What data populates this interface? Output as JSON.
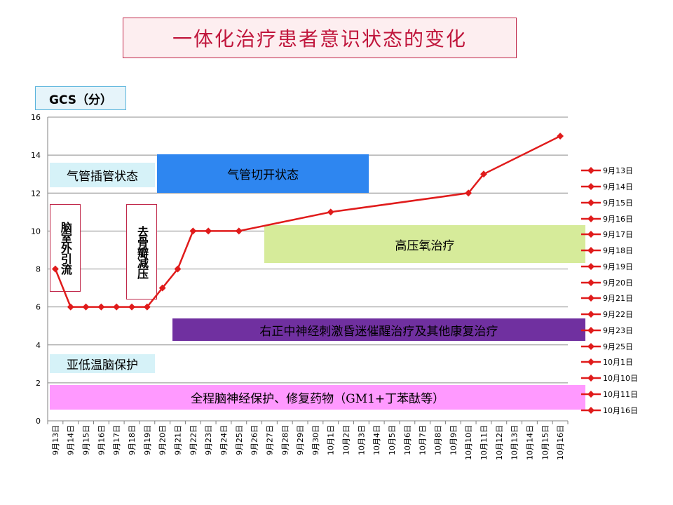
{
  "page_title": "一体化治疗患者意识状态的变化",
  "y_axis_label": "GCS（分）",
  "chart_data": {
    "type": "line",
    "categories": [
      "9月13日",
      "9月14日",
      "9月15日",
      "9月16日",
      "9月17日",
      "9月18日",
      "9月19日",
      "9月20日",
      "9月21日",
      "9月22日",
      "9月23日",
      "9月24日",
      "9月25日",
      "9月26日",
      "9月27日",
      "9月28日",
      "9月29日",
      "9月30日",
      "10月1日",
      "10月2日",
      "10月3日",
      "10月4日",
      "10月5日",
      "10月6日",
      "10月7日",
      "10月8日",
      "10月9日",
      "10月10日",
      "10月11日",
      "10月12日",
      "10月13日",
      "10月14日",
      "10月15日",
      "10月16日"
    ],
    "ylim": [
      0,
      16
    ],
    "yticks": [
      0,
      2,
      4,
      6,
      8,
      10,
      12,
      14,
      16
    ],
    "grid": true,
    "legend_position": "right",
    "series": [
      {
        "color": "#e01b1b",
        "marker_color": "#e01b1b",
        "points": [
          {
            "x": "9月13日",
            "y": 8
          },
          {
            "x": "9月14日",
            "y": 6
          },
          {
            "x": "9月15日",
            "y": 6
          },
          {
            "x": "9月16日",
            "y": 6
          },
          {
            "x": "9月17日",
            "y": 6
          },
          {
            "x": "9月18日",
            "y": 6
          },
          {
            "x": "9月19日",
            "y": 6
          },
          {
            "x": "9月20日",
            "y": 7
          },
          {
            "x": "9月21日",
            "y": 8
          },
          {
            "x": "9月22日",
            "y": 10
          },
          {
            "x": "9月23日",
            "y": 10
          },
          {
            "x": "9月25日",
            "y": 10
          },
          {
            "x": "10月1日",
            "y": 11
          },
          {
            "x": "10月10日",
            "y": 12
          },
          {
            "x": "10月11日",
            "y": 13
          },
          {
            "x": "10月16日",
            "y": 15
          }
        ]
      }
    ],
    "legend_entries": [
      "9月13日",
      "9月14日",
      "9月15日",
      "9月16日",
      "9月17日",
      "9月18日",
      "9月19日",
      "9月20日",
      "9月21日",
      "9月22日",
      "9月23日",
      "9月25日",
      "10月1日",
      "10月10日",
      "10月11日",
      "10月16日"
    ]
  },
  "annotations": [
    {
      "id": "intubation",
      "text": "气管插管状态",
      "color": "#d6f2f8",
      "from": "9月13日",
      "to": "9月19日",
      "y_top": 13.6,
      "y_bottom": 12.3
    },
    {
      "id": "tracheotomy",
      "text": "气管切开状态",
      "color": "#2e86f0",
      "from": "9月20日",
      "to": "10月3日",
      "y_top": 14.05,
      "y_bottom": 12.0
    },
    {
      "id": "hbo",
      "text": "高压氧治疗",
      "color": "#d6eb9a",
      "from": "9月27日",
      "to": "10月16日",
      "y_top": 10.3,
      "y_bottom": 8.3
    },
    {
      "id": "stim",
      "text": "右正中神经刺激昏迷催醒治疗及其他康复治疗",
      "color": "#7030a0",
      "from": "9月21日",
      "to": "10月16日",
      "y_top": 5.4,
      "y_bottom": 4.2
    },
    {
      "id": "hypothermia",
      "text": "亚低温脑保护",
      "color": "#d6f2f8",
      "from": "9月13日",
      "to": "9月19日",
      "y_top": 3.5,
      "y_bottom": 2.5
    },
    {
      "id": "neuroprotect",
      "text": "全程脑神经保护、修复药物（GM1+丁苯酞等）",
      "color": "#ff99ff",
      "from": "9月13日",
      "to": "10月16日",
      "y_top": 1.9,
      "y_bottom": 0.6
    },
    {
      "id": "evd",
      "text": "脑室外引流",
      "vertical": true,
      "from": "9月13日",
      "y_top": 11.4,
      "y_bottom": 6.8
    },
    {
      "id": "decompress",
      "text": "去骨瓣减压",
      "vertical": true,
      "from": "9月18日",
      "y_top": 11.4,
      "y_bottom": 6.4
    }
  ]
}
